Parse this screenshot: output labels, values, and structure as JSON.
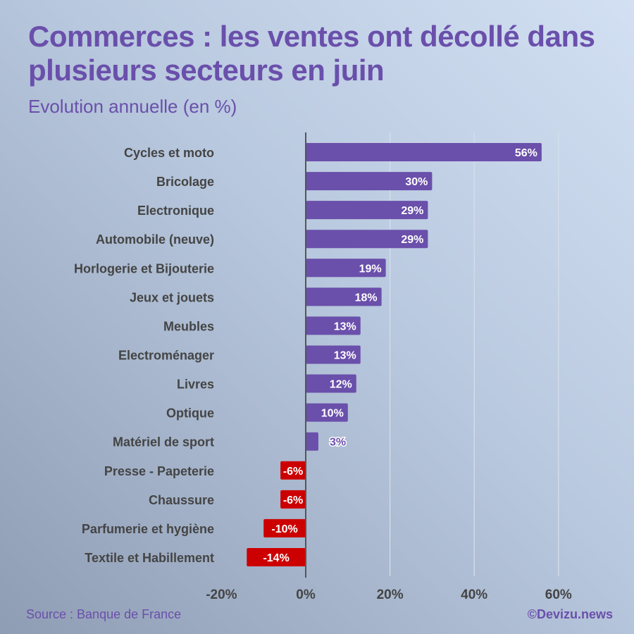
{
  "title": "Commerces : les ventes ont décollé dans plusieurs secteurs en juin",
  "subtitle": "Evolution annuelle (en %)",
  "source": "Source : Banque de France",
  "credit": "©Devizu.news",
  "chart_data": {
    "type": "bar",
    "orientation": "horizontal",
    "title": "Commerces : les ventes ont décollé dans plusieurs secteurs en juin",
    "subtitle": "Evolution annuelle (en %)",
    "categories": [
      "Cycles et moto",
      "Bricolage",
      "Electronique",
      "Automobile (neuve)",
      "Horlogerie et Bijouterie",
      "Jeux et jouets",
      "Meubles",
      "Electroménager",
      "Livres",
      "Optique",
      "Matériel de sport",
      "Presse - Papeterie",
      "Chaussure",
      "Parfumerie et hygiène",
      "Textile et Habillement"
    ],
    "values": [
      56,
      30,
      29,
      29,
      19,
      18,
      13,
      13,
      12,
      10,
      3,
      -6,
      -6,
      -10,
      -14
    ],
    "data_labels": [
      "56%",
      "30%",
      "29%",
      "29%",
      "19%",
      "18%",
      "13%",
      "13%",
      "12%",
      "10%",
      "3%",
      "-6%",
      "-6%",
      "-10%",
      "-14%"
    ],
    "xlim": [
      -20,
      60
    ],
    "xticks": [
      -20,
      0,
      20,
      40,
      60
    ],
    "xtick_labels": [
      "-20%",
      "0%",
      "20%",
      "40%",
      "60%"
    ],
    "grid": true,
    "colors": {
      "positive": "#6a4fab",
      "negative": "#cc0000"
    }
  }
}
